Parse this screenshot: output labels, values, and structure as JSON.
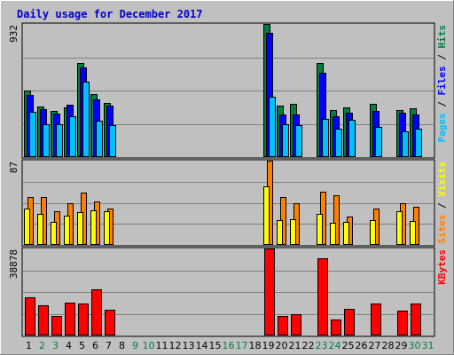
{
  "title": "Daily usage for December 2017",
  "colors": {
    "hits": "#008040",
    "files": "#0000FF",
    "pages": "#00C0FF",
    "visits": "#FF8000",
    "sites": "#FFFF00",
    "kbytes": "#FF0000",
    "weekday": "#000000",
    "weekend": "#008040",
    "title": "#0000CC"
  },
  "chart_data": [
    {
      "type": "bar",
      "panel": "top",
      "ymax_label": "932",
      "ylim": [
        0,
        932
      ],
      "right_labels": [
        "Pages",
        "Files",
        "Hits"
      ],
      "separator": " / ",
      "categories": [
        "1",
        "2",
        "3",
        "4",
        "5",
        "6",
        "7",
        "8",
        "9",
        "10",
        "11",
        "12",
        "13",
        "14",
        "15",
        "16",
        "17",
        "18",
        "19",
        "20",
        "21",
        "22",
        "23",
        "24",
        "25",
        "26",
        "27",
        "28",
        "29",
        "30",
        "31"
      ],
      "weekend_days": [
        "2",
        "3",
        "9",
        "10",
        "16",
        "17",
        "23",
        "24",
        "30",
        "31"
      ],
      "series": [
        {
          "name": "Hits",
          "values": [
            465,
            355,
            320,
            350,
            660,
            440,
            380,
            0,
            0,
            0,
            0,
            0,
            0,
            0,
            0,
            0,
            0,
            0,
            932,
            360,
            370,
            0,
            660,
            330,
            350,
            0,
            370,
            0,
            330,
            340,
            0
          ]
        },
        {
          "name": "Files",
          "values": [
            435,
            335,
            305,
            365,
            625,
            405,
            360,
            0,
            0,
            0,
            0,
            0,
            0,
            0,
            0,
            0,
            0,
            0,
            870,
            300,
            300,
            0,
            590,
            285,
            310,
            0,
            320,
            0,
            310,
            300,
            0
          ]
        },
        {
          "name": "Pages",
          "values": [
            315,
            230,
            230,
            285,
            530,
            255,
            225,
            0,
            0,
            0,
            0,
            0,
            0,
            0,
            0,
            0,
            0,
            0,
            425,
            230,
            225,
            0,
            270,
            200,
            260,
            0,
            210,
            0,
            180,
            200,
            0
          ]
        }
      ]
    },
    {
      "type": "bar",
      "panel": "middle",
      "ymax_label": "87",
      "ylim": [
        0,
        87
      ],
      "right_labels": [
        "Sites",
        "Visits"
      ],
      "separator": " / ",
      "categories": [
        "1",
        "2",
        "3",
        "4",
        "5",
        "6",
        "7",
        "8",
        "9",
        "10",
        "11",
        "12",
        "13",
        "14",
        "15",
        "16",
        "17",
        "18",
        "19",
        "20",
        "21",
        "22",
        "23",
        "24",
        "25",
        "26",
        "27",
        "28",
        "29",
        "30",
        "31"
      ],
      "series": [
        {
          "name": "Visits",
          "values": [
            49,
            49,
            35,
            43,
            54,
            45,
            38,
            0,
            0,
            0,
            0,
            0,
            0,
            0,
            0,
            0,
            0,
            0,
            87,
            49,
            43,
            0,
            55,
            51,
            29,
            0,
            38,
            0,
            43,
            39,
            0
          ]
        },
        {
          "name": "Sites",
          "values": [
            38,
            32,
            24,
            30,
            34,
            36,
            35,
            0,
            0,
            0,
            0,
            0,
            0,
            0,
            0,
            0,
            0,
            0,
            60,
            26,
            27,
            0,
            32,
            23,
            24,
            0,
            26,
            0,
            35,
            25,
            0
          ]
        }
      ]
    },
    {
      "type": "bar",
      "panel": "bottom",
      "ymax_label": "38878",
      "ylim": [
        0,
        38878
      ],
      "right_labels": [
        "KBytes"
      ],
      "separator": "",
      "categories": [
        "1",
        "2",
        "3",
        "4",
        "5",
        "6",
        "7",
        "8",
        "9",
        "10",
        "11",
        "12",
        "13",
        "14",
        "15",
        "16",
        "17",
        "18",
        "19",
        "20",
        "21",
        "22",
        "23",
        "24",
        "25",
        "26",
        "27",
        "28",
        "29",
        "30",
        "31"
      ],
      "series": [
        {
          "name": "KBytes",
          "values": [
            16900,
            13300,
            8800,
            14800,
            14100,
            20600,
            11400,
            0,
            0,
            0,
            0,
            0,
            0,
            0,
            0,
            0,
            0,
            0,
            38878,
            8800,
            9600,
            0,
            34500,
            7300,
            11800,
            0,
            14400,
            0,
            11200,
            14100,
            0
          ]
        }
      ]
    }
  ]
}
